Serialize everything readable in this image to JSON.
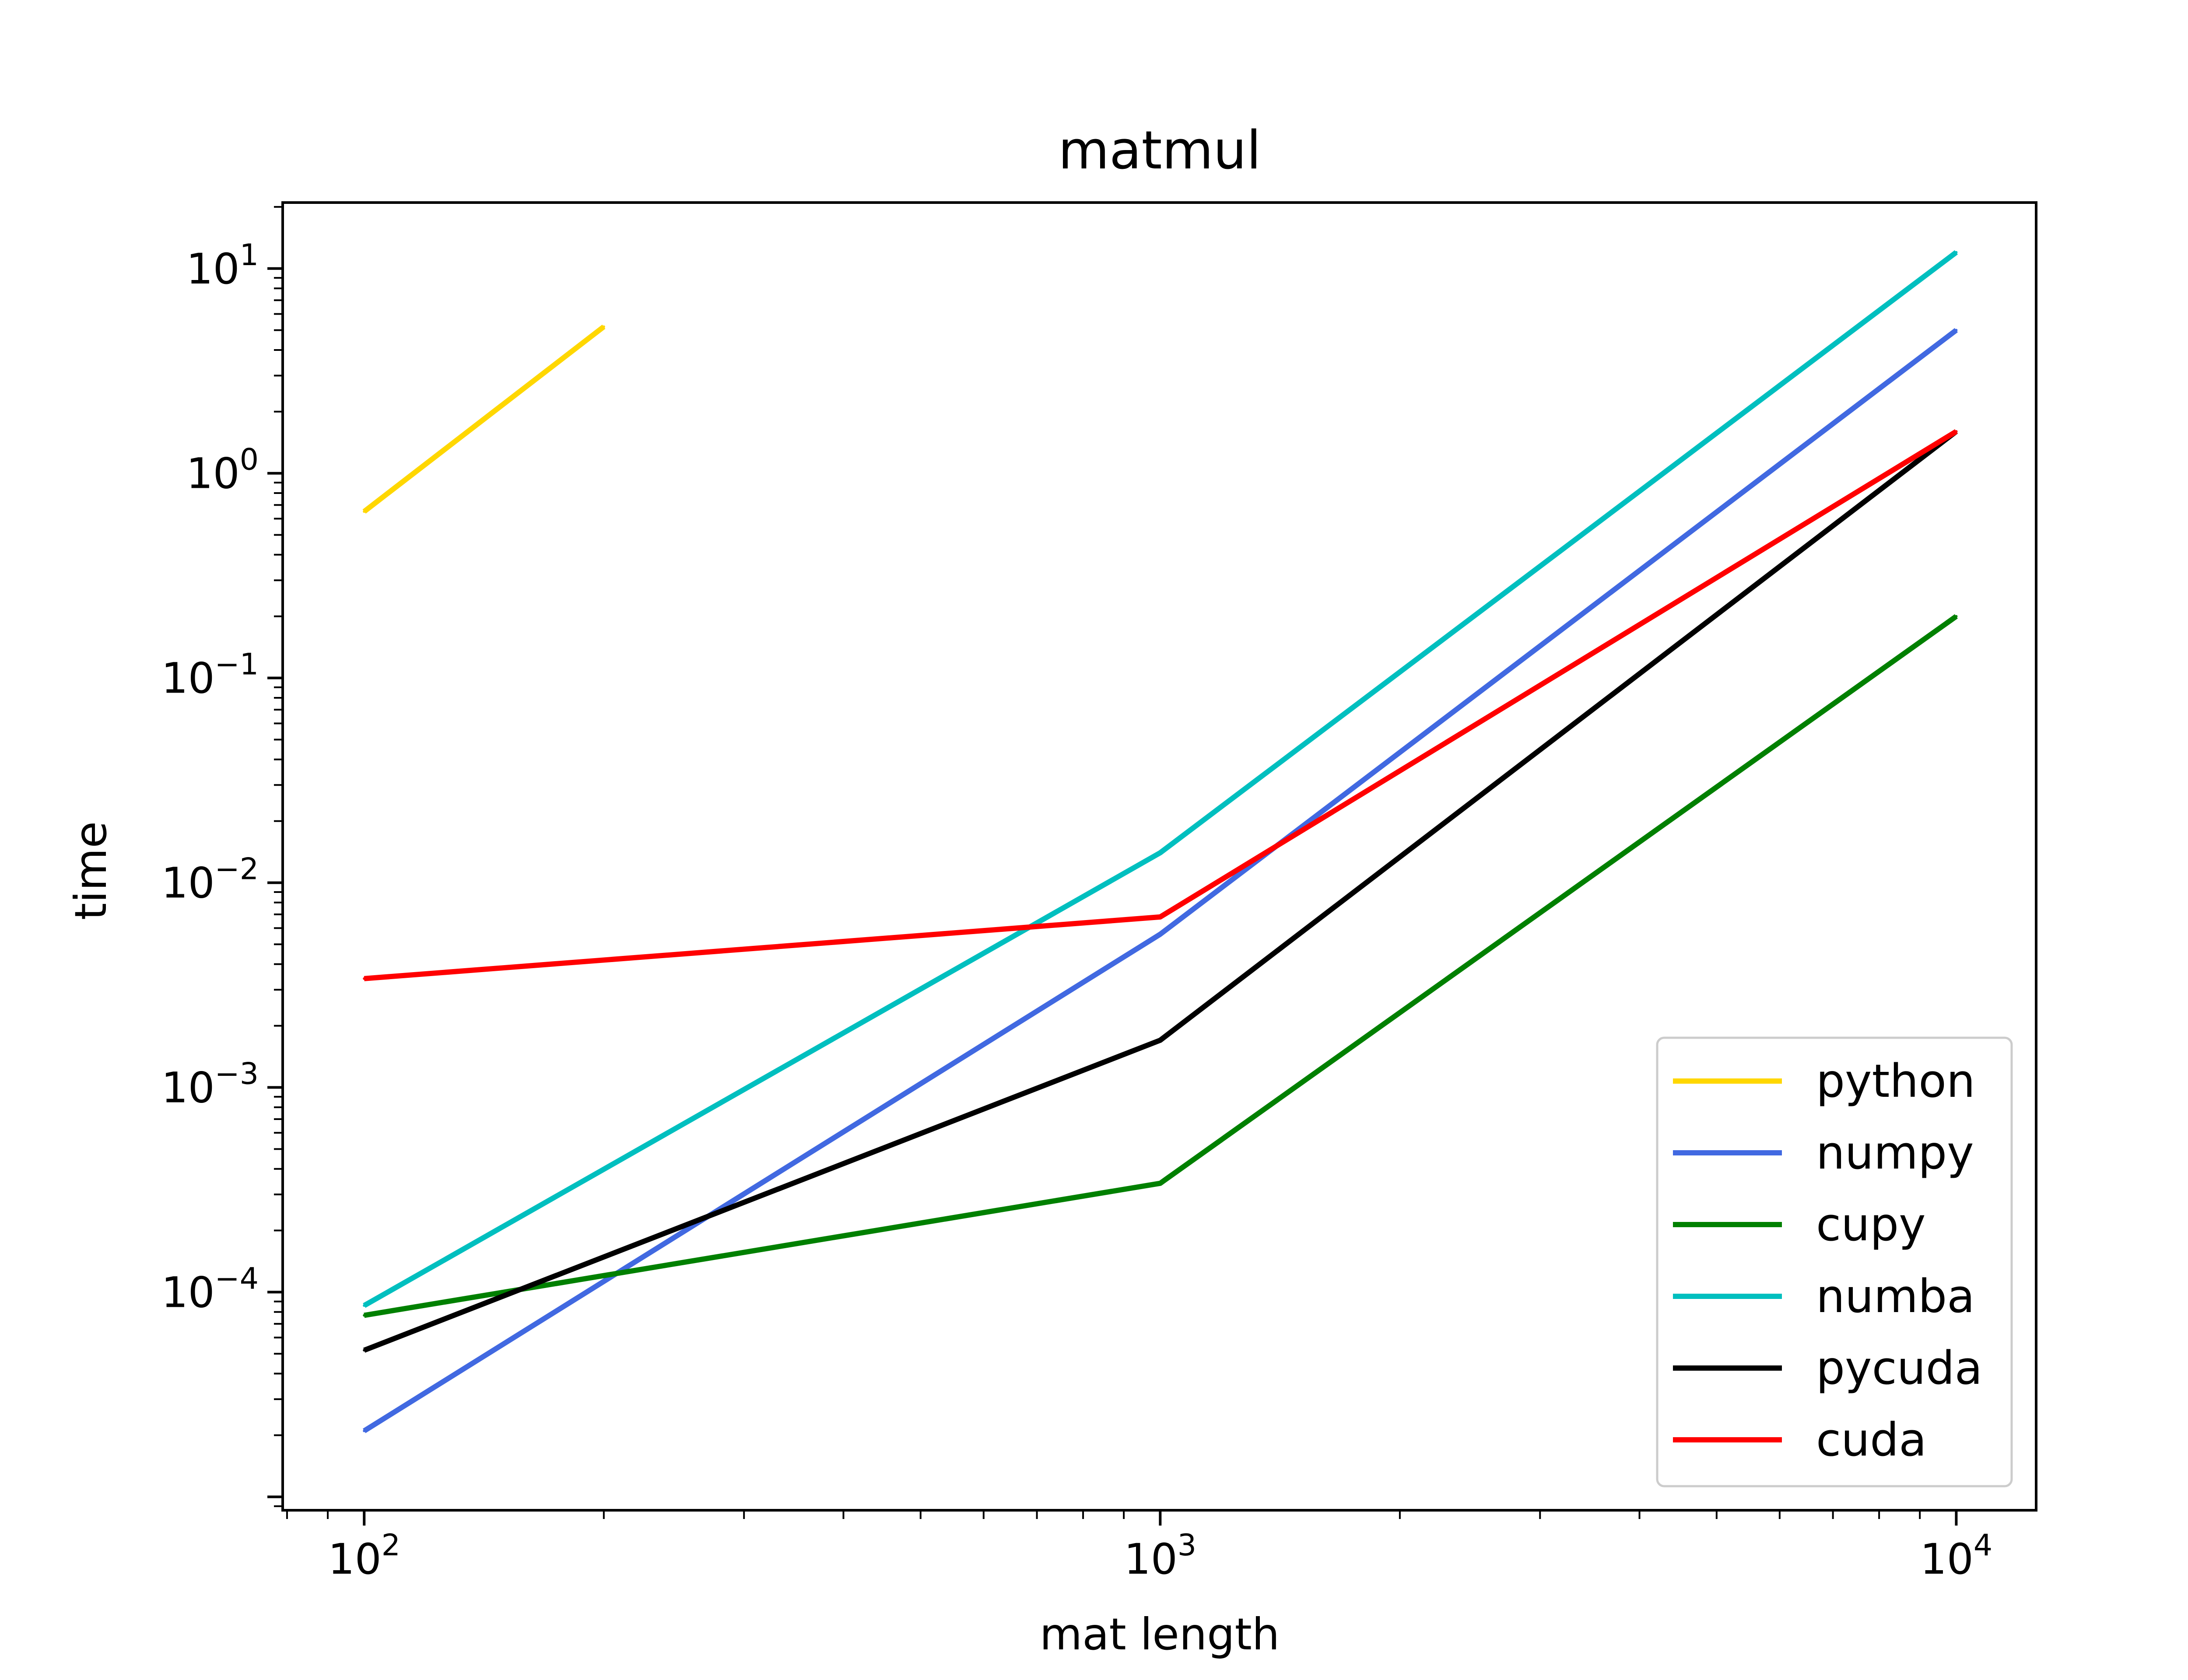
{
  "chart_data": {
    "type": "line",
    "title": "matmul",
    "xlabel": "mat length",
    "ylabel": "time",
    "xscale": "log",
    "yscale": "log",
    "xlim": [
      79,
      12600
    ],
    "ylim": [
      8.6e-06,
      21
    ],
    "grid": false,
    "legend_position": "lower-right",
    "x_ticks": [
      {
        "value": 100,
        "base": "10",
        "exp": "2"
      },
      {
        "value": 1000,
        "base": "10",
        "exp": "3"
      },
      {
        "value": 10000,
        "base": "10",
        "exp": "4"
      }
    ],
    "y_ticks": [
      {
        "value": 0.0001,
        "base": "10",
        "exp": "−4"
      },
      {
        "value": 0.001,
        "base": "10",
        "exp": "−3"
      },
      {
        "value": 0.01,
        "base": "10",
        "exp": "−2"
      },
      {
        "value": 0.1,
        "base": "10",
        "exp": "−1"
      },
      {
        "value": 1,
        "base": "10",
        "exp": "0"
      },
      {
        "value": 10,
        "base": "10",
        "exp": "1"
      }
    ],
    "series": [
      {
        "name": "python",
        "color": "#FFD700",
        "x": [
          100,
          200
        ],
        "y": [
          0.65,
          5.2
        ]
      },
      {
        "name": "numpy",
        "color": "#4169E1",
        "x": [
          100,
          1000,
          10000
        ],
        "y": [
          2.1e-05,
          0.0056,
          5.0
        ]
      },
      {
        "name": "cupy",
        "color": "#008000",
        "x": [
          100,
          1000,
          10000
        ],
        "y": [
          7.7e-05,
          0.00034,
          0.2
        ]
      },
      {
        "name": "numba",
        "color": "#00BFBF",
        "x": [
          100,
          1000,
          10000
        ],
        "y": [
          8.6e-05,
          0.014,
          12
        ]
      },
      {
        "name": "pycuda",
        "color": "#000000",
        "x": [
          100,
          1000,
          10000
        ],
        "y": [
          5.2e-05,
          0.0017,
          1.6
        ]
      },
      {
        "name": "cuda",
        "color": "#FF0000",
        "x": [
          100,
          1000,
          10000
        ],
        "y": [
          0.0034,
          0.0068,
          1.6
        ]
      }
    ]
  }
}
